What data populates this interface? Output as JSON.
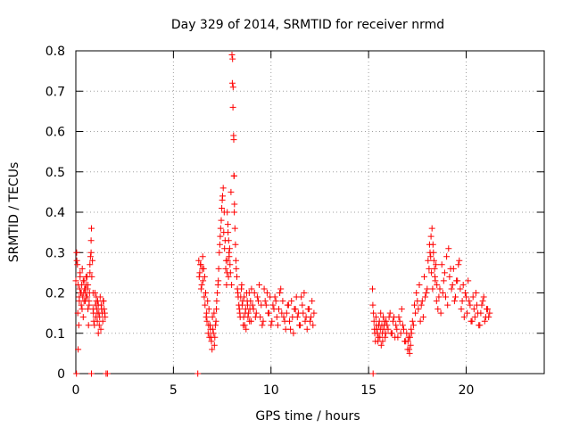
{
  "chart_data": {
    "type": "scatter",
    "title": "Day 329 of 2014, SRMTID for receiver nrmd",
    "xlabel": "GPS time / hours",
    "ylabel": "SRMTID / TECUs",
    "xlim": [
      0,
      24
    ],
    "ylim": [
      0,
      0.8
    ],
    "xticks": [
      0,
      5,
      10,
      15,
      20
    ],
    "xtick_labels": [
      "0",
      "5",
      "10",
      "15",
      "20"
    ],
    "yticks": [
      0,
      0.1,
      0.2,
      0.3,
      0.4,
      0.5,
      0.6,
      0.7,
      0.8
    ],
    "ytick_labels": [
      "0",
      "0.1",
      "0.2",
      "0.3",
      "0.4",
      "0.5",
      "0.6",
      "0.7",
      "0.8"
    ],
    "grid": true,
    "marker": "plus",
    "color": "#ff0000",
    "series": [
      {
        "name": "SRMTID",
        "x": [
          0.0,
          0.04,
          0.08,
          0.1,
          0.12,
          0.15,
          0.18,
          0.2,
          0.22,
          0.25,
          0.28,
          0.3,
          0.33,
          0.35,
          0.38,
          0.4,
          0.42,
          0.45,
          0.48,
          0.5,
          0.52,
          0.55,
          0.58,
          0.6,
          0.62,
          0.65,
          0.68,
          0.7,
          0.72,
          0.75,
          0.78,
          0.8,
          0.85,
          0.88,
          0.9,
          0.95,
          1.0,
          1.02,
          1.05,
          1.08,
          1.1,
          1.12,
          1.15,
          1.18,
          1.2,
          1.25,
          1.3,
          1.35,
          1.4,
          1.45,
          1.5,
          6.3,
          6.35,
          6.4,
          6.45,
          6.5,
          6.55,
          6.6,
          6.65,
          6.7,
          6.75,
          6.8,
          6.85,
          6.9,
          6.95,
          7.0,
          7.05,
          7.1,
          7.15,
          7.2,
          7.25,
          7.3,
          7.35,
          7.4,
          7.45,
          7.5,
          7.55,
          7.6,
          7.65,
          7.7,
          7.75,
          7.8,
          7.85,
          7.9,
          7.95,
          8.0,
          8.02,
          8.05,
          8.08,
          8.1,
          8.12,
          8.15,
          8.18,
          8.2,
          8.25,
          8.3,
          8.35,
          8.4,
          8.45,
          8.5,
          8.55,
          8.6,
          8.65,
          8.7,
          8.75,
          8.8,
          8.85,
          8.9,
          8.95,
          9.0,
          9.1,
          9.2,
          9.3,
          9.4,
          9.5,
          9.6,
          9.7,
          9.8,
          9.9,
          10.0,
          10.1,
          10.2,
          10.3,
          10.4,
          10.5,
          10.6,
          10.7,
          10.8,
          10.9,
          11.0,
          11.1,
          11.2,
          11.3,
          11.4,
          11.5,
          11.6,
          11.7,
          11.8,
          11.9,
          12.0,
          12.1,
          12.2,
          15.2,
          15.25,
          15.3,
          15.35,
          15.4,
          15.45,
          15.5,
          15.55,
          15.6,
          15.65,
          15.7,
          15.75,
          15.8,
          15.85,
          15.9,
          16.0,
          16.1,
          16.2,
          16.3,
          16.4,
          16.5,
          16.6,
          16.7,
          16.8,
          16.9,
          17.0,
          17.05,
          17.1,
          17.15,
          17.2,
          17.3,
          17.4,
          17.5,
          17.6,
          17.7,
          17.8,
          17.9,
          18.0,
          18.1,
          18.15,
          18.2,
          18.25,
          18.3,
          18.35,
          18.4,
          18.45,
          18.5,
          18.6,
          18.7,
          18.8,
          18.9,
          19.0,
          19.1,
          19.2,
          19.3,
          19.4,
          19.5,
          19.6,
          19.7,
          19.8,
          19.9,
          20.0,
          20.1,
          20.2,
          20.3,
          20.4,
          20.5,
          20.6,
          20.7,
          20.8,
          20.9,
          21.0,
          21.1,
          21.2,
          0.05,
          0.12,
          0.18,
          0.22,
          0.28,
          0.32,
          0.38,
          0.42,
          0.48,
          0.52,
          0.58,
          0.62,
          0.68,
          0.72,
          0.78,
          0.82,
          0.88,
          0.92,
          0.98,
          1.05,
          1.1,
          1.15,
          1.22,
          1.28,
          1.32,
          1.38,
          1.42,
          1.48,
          6.32,
          6.38,
          6.42,
          6.48,
          6.52,
          6.58,
          6.62,
          6.68,
          6.72,
          6.78,
          6.82,
          6.88,
          6.92,
          6.98,
          7.02,
          7.08,
          7.12,
          7.18,
          7.22,
          7.28,
          7.32,
          7.38,
          7.42,
          7.48,
          7.52,
          7.58,
          7.62,
          7.68,
          7.72,
          7.78,
          7.82,
          7.88,
          7.92,
          7.98,
          8.22,
          8.28,
          8.32,
          8.38,
          8.42,
          8.48,
          8.52,
          8.58,
          8.62,
          8.68,
          8.72,
          8.78,
          8.82,
          8.88,
          8.92,
          8.98,
          9.05,
          9.15,
          9.25,
          9.35,
          9.45,
          9.55,
          9.65,
          9.75,
          9.85,
          9.95,
          10.05,
          10.15,
          10.25,
          10.35,
          10.45,
          10.55,
          10.65,
          10.75,
          10.85,
          10.95,
          11.05,
          11.15,
          11.25,
          11.35,
          11.45,
          11.55,
          11.65,
          11.75,
          11.85,
          11.95,
          12.05,
          12.15,
          15.22,
          15.28,
          15.32,
          15.38,
          15.42,
          15.48,
          15.52,
          15.58,
          15.62,
          15.68,
          15.72,
          15.78,
          15.82,
          15.88,
          15.95,
          16.05,
          16.15,
          16.25,
          16.35,
          16.45,
          16.55,
          16.65,
          16.75,
          16.85,
          16.95,
          17.02,
          17.08,
          17.12,
          17.18,
          17.25,
          17.35,
          17.45,
          17.55,
          17.65,
          17.75,
          17.85,
          17.95,
          18.05,
          18.12,
          18.18,
          18.22,
          18.28,
          18.32,
          18.38,
          18.42,
          18.48,
          18.55,
          18.65,
          18.75,
          18.85,
          18.95,
          19.05,
          19.15,
          19.25,
          19.35,
          19.45,
          19.55,
          19.65,
          19.75,
          19.85,
          19.95,
          20.05,
          20.15,
          20.25,
          20.35,
          20.45,
          20.55,
          20.65,
          20.75,
          20.85,
          20.95,
          21.05,
          21.15,
          0.03,
          0.8,
          1.55,
          1.62,
          6.25,
          15.23,
          8.03,
          8.06,
          8.09,
          8.11,
          8.13,
          7.76,
          7.79,
          7.83,
          7.86
        ],
        "y": [
          0.23,
          0.3,
          0.27,
          0.15,
          0.06,
          0.12,
          0.18,
          0.21,
          0.25,
          0.2,
          0.17,
          0.22,
          0.26,
          0.19,
          0.14,
          0.2,
          0.23,
          0.21,
          0.18,
          0.2,
          0.22,
          0.19,
          0.24,
          0.21,
          0.16,
          0.12,
          0.17,
          0.2,
          0.25,
          0.29,
          0.33,
          0.36,
          0.28,
          0.2,
          0.15,
          0.12,
          0.17,
          0.14,
          0.19,
          0.16,
          0.13,
          0.18,
          0.1,
          0.15,
          0.12,
          0.19,
          0.17,
          0.15,
          0.18,
          0.16,
          0.14,
          0.28,
          0.25,
          0.27,
          0.22,
          0.29,
          0.26,
          0.24,
          0.2,
          0.15,
          0.18,
          0.12,
          0.09,
          0.11,
          0.08,
          0.14,
          0.1,
          0.07,
          0.12,
          0.16,
          0.2,
          0.23,
          0.3,
          0.34,
          0.38,
          0.43,
          0.46,
          0.4,
          0.33,
          0.28,
          0.25,
          0.35,
          0.3,
          0.27,
          0.45,
          0.79,
          0.72,
          0.66,
          0.59,
          0.49,
          0.4,
          0.36,
          0.32,
          0.28,
          0.24,
          0.2,
          0.17,
          0.15,
          0.19,
          0.22,
          0.18,
          0.14,
          0.12,
          0.16,
          0.2,
          0.17,
          0.15,
          0.13,
          0.18,
          0.21,
          0.16,
          0.14,
          0.19,
          0.22,
          0.17,
          0.13,
          0.18,
          0.2,
          0.15,
          0.12,
          0.17,
          0.19,
          0.14,
          0.16,
          0.21,
          0.18,
          0.13,
          0.15,
          0.17,
          0.11,
          0.14,
          0.16,
          0.19,
          0.15,
          0.12,
          0.17,
          0.2,
          0.14,
          0.16,
          0.13,
          0.18,
          0.15,
          0.21,
          0.15,
          0.11,
          0.08,
          0.12,
          0.1,
          0.09,
          0.13,
          0.11,
          0.07,
          0.1,
          0.14,
          0.12,
          0.09,
          0.13,
          0.11,
          0.15,
          0.1,
          0.14,
          0.12,
          0.09,
          0.13,
          0.16,
          0.11,
          0.08,
          0.06,
          0.09,
          0.05,
          0.07,
          0.1,
          0.12,
          0.15,
          0.18,
          0.22,
          0.17,
          0.14,
          0.19,
          0.21,
          0.26,
          0.3,
          0.34,
          0.36,
          0.32,
          0.28,
          0.24,
          0.27,
          0.22,
          0.19,
          0.15,
          0.2,
          0.25,
          0.29,
          0.31,
          0.26,
          0.22,
          0.18,
          0.23,
          0.27,
          0.21,
          0.18,
          0.14,
          0.19,
          0.23,
          0.17,
          0.13,
          0.16,
          0.2,
          0.15,
          0.12,
          0.17,
          0.19,
          0.14,
          0.16,
          0.15,
          0.28,
          0.22,
          0.19,
          0.24,
          0.2,
          0.16,
          0.23,
          0.18,
          0.21,
          0.24,
          0.19,
          0.22,
          0.18,
          0.27,
          0.3,
          0.24,
          0.16,
          0.13,
          0.2,
          0.18,
          0.15,
          0.17,
          0.14,
          0.11,
          0.16,
          0.13,
          0.18,
          0.15,
          0.24,
          0.27,
          0.21,
          0.26,
          0.23,
          0.19,
          0.17,
          0.14,
          0.13,
          0.1,
          0.16,
          0.12,
          0.09,
          0.06,
          0.11,
          0.15,
          0.09,
          0.13,
          0.18,
          0.22,
          0.26,
          0.32,
          0.36,
          0.41,
          0.44,
          0.35,
          0.31,
          0.26,
          0.22,
          0.28,
          0.24,
          0.31,
          0.25,
          0.22,
          0.26,
          0.21,
          0.19,
          0.16,
          0.14,
          0.21,
          0.17,
          0.12,
          0.19,
          0.15,
          0.11,
          0.18,
          0.14,
          0.2,
          0.16,
          0.13,
          0.17,
          0.2,
          0.15,
          0.18,
          0.14,
          0.12,
          0.21,
          0.17,
          0.15,
          0.19,
          0.13,
          0.16,
          0.18,
          0.12,
          0.2,
          0.15,
          0.14,
          0.11,
          0.17,
          0.13,
          0.18,
          0.1,
          0.16,
          0.14,
          0.12,
          0.19,
          0.15,
          0.13,
          0.11,
          0.16,
          0.14,
          0.12,
          0.17,
          0.13,
          0.1,
          0.14,
          0.11,
          0.08,
          0.12,
          0.09,
          0.15,
          0.12,
          0.08,
          0.11,
          0.13,
          0.1,
          0.12,
          0.14,
          0.1,
          0.13,
          0.09,
          0.11,
          0.14,
          0.1,
          0.12,
          0.08,
          0.1,
          0.08,
          0.06,
          0.09,
          0.11,
          0.13,
          0.17,
          0.2,
          0.16,
          0.13,
          0.18,
          0.24,
          0.2,
          0.28,
          0.32,
          0.29,
          0.25,
          0.21,
          0.3,
          0.26,
          0.23,
          0.18,
          0.16,
          0.21,
          0.27,
          0.23,
          0.19,
          0.17,
          0.24,
          0.21,
          0.26,
          0.19,
          0.23,
          0.28,
          0.16,
          0.22,
          0.2,
          0.15,
          0.18,
          0.13,
          0.19,
          0.14,
          0.17,
          0.12,
          0.15,
          0.18,
          0.13,
          0.16,
          0.14,
          0.0,
          0.0,
          0.0,
          0.0,
          0.0,
          0.0,
          0.78,
          0.71,
          0.58,
          0.49,
          0.42,
          0.4,
          0.37,
          0.33,
          0.29
        ]
      }
    ]
  }
}
